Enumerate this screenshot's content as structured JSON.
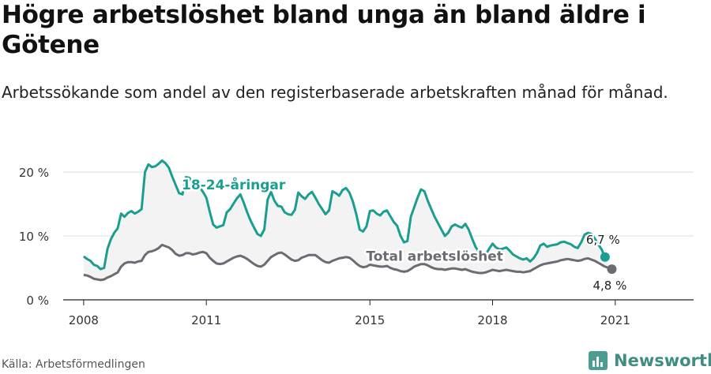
{
  "title": "Högre arbetslöshet bland unga än bland äldre i Götene",
  "subtitle": "Arbetssökande som andel av den registerbaserade arbetskraften månad för månad.",
  "source": "Källa: Arbetsförmedlingen",
  "brand": {
    "name": "Newsworthy",
    "icon": "bar-chart-logo-icon",
    "color": "#4a9d8f"
  },
  "chart_data": {
    "type": "line",
    "x_start": "2008-01",
    "x_end": "2022-02",
    "xlim": [
      "2007-07",
      "2022-12"
    ],
    "ylim": [
      0,
      21
    ],
    "y_ticks": [
      {
        "value": 0,
        "label": "0 %"
      },
      {
        "value": 10,
        "label": "10 %"
      },
      {
        "value": 20,
        "label": "20 %"
      }
    ],
    "x_ticks": [
      {
        "value": "2008-01",
        "label": "2008"
      },
      {
        "value": "2011-01",
        "label": "2011"
      },
      {
        "value": "2015-01",
        "label": "2015"
      },
      {
        "value": "2018-01",
        "label": "2018"
      },
      {
        "value": "2021-01",
        "label": "2021"
      }
    ],
    "grid": true,
    "band_between_series": true,
    "series": [
      {
        "name": "18-24-åringar",
        "color": "#1a9e8f",
        "label_date": "2011-09",
        "end_label": "6,7 %",
        "values": [
          6.8,
          6.4,
          6.1,
          5.5,
          5.3,
          4.8,
          5.0,
          8.0,
          9.5,
          10.5,
          11.2,
          13.5,
          13.0,
          13.6,
          13.9,
          13.5,
          13.8,
          14.2,
          20.0,
          21.2,
          20.8,
          20.9,
          21.3,
          21.8,
          21.4,
          20.7,
          19.3,
          18.0,
          16.7,
          16.5,
          19.2,
          19.1,
          18.3,
          17.5,
          17.7,
          16.9,
          16.0,
          13.8,
          11.8,
          11.3,
          11.5,
          11.7,
          13.7,
          14.2,
          15.1,
          15.9,
          16.5,
          15.2,
          13.7,
          12.4,
          11.3,
          10.3,
          10.0,
          11.0,
          15.7,
          16.9,
          15.5,
          14.7,
          14.6,
          13.7,
          13.4,
          13.3,
          14.1,
          16.8,
          16.2,
          15.8,
          16.5,
          16.9,
          16.0,
          15.0,
          14.2,
          13.4,
          14.0,
          17.0,
          16.7,
          16.3,
          17.2,
          17.5,
          16.8,
          15.4,
          13.4,
          11.0,
          10.7,
          11.5,
          13.9,
          14.0,
          13.5,
          13.2,
          13.8,
          14.0,
          13.1,
          12.2,
          11.6,
          10.0,
          9.0,
          9.2,
          13.0,
          14.5,
          16.0,
          17.3,
          17.0,
          15.5,
          14.2,
          13.0,
          12.0,
          11.0,
          10.0,
          10.5,
          11.5,
          11.8,
          11.5,
          11.3,
          11.9,
          11.0,
          9.6,
          8.3,
          7.5,
          7.5,
          7.1,
          8.0,
          8.8,
          8.2,
          7.9,
          8.0,
          8.2,
          7.7,
          7.1,
          6.8,
          6.5,
          6.3,
          6.5,
          6.0,
          6.5,
          7.3,
          8.5,
          8.8,
          8.3,
          8.5,
          8.6,
          8.7,
          9.0,
          9.1,
          8.9,
          8.7,
          8.3,
          8.1,
          9.0,
          10.2,
          10.5,
          10.3,
          9.6,
          8.7,
          7.9,
          6.7
        ]
      },
      {
        "name": "Total arbetslöshet",
        "color": "#6b6b73",
        "label_date": "2016-08",
        "end_label": "4,8 %",
        "values": [
          3.9,
          3.8,
          3.6,
          3.3,
          3.2,
          3.1,
          3.2,
          3.5,
          3.7,
          4.0,
          4.3,
          5.2,
          5.7,
          5.9,
          5.9,
          5.8,
          6.0,
          6.1,
          7.0,
          7.5,
          7.6,
          7.8,
          8.1,
          8.6,
          8.4,
          8.2,
          7.8,
          7.2,
          6.9,
          7.0,
          7.3,
          7.3,
          7.1,
          7.2,
          7.4,
          7.5,
          7.3,
          6.6,
          6.1,
          5.7,
          5.6,
          5.7,
          6.0,
          6.3,
          6.6,
          6.8,
          6.9,
          6.7,
          6.4,
          6.0,
          5.6,
          5.3,
          5.2,
          5.5,
          6.1,
          6.7,
          7.0,
          7.3,
          7.4,
          7.1,
          6.7,
          6.3,
          6.1,
          6.2,
          6.6,
          6.8,
          7.0,
          7.0,
          7.0,
          6.6,
          6.2,
          5.9,
          5.8,
          6.1,
          6.3,
          6.5,
          6.6,
          6.7,
          6.6,
          6.2,
          5.7,
          5.3,
          5.1,
          5.2,
          5.5,
          5.4,
          5.3,
          5.2,
          5.2,
          5.3,
          5.0,
          4.8,
          4.7,
          4.5,
          4.4,
          4.5,
          4.8,
          5.2,
          5.4,
          5.6,
          5.6,
          5.4,
          5.1,
          4.9,
          4.8,
          4.8,
          4.7,
          4.8,
          4.9,
          4.9,
          4.8,
          4.7,
          4.8,
          4.6,
          4.4,
          4.3,
          4.2,
          4.2,
          4.3,
          4.5,
          4.7,
          4.6,
          4.5,
          4.6,
          4.7,
          4.6,
          4.5,
          4.4,
          4.4,
          4.3,
          4.4,
          4.5,
          4.8,
          5.1,
          5.4,
          5.6,
          5.7,
          5.8,
          5.9,
          6.0,
          6.2,
          6.3,
          6.4,
          6.3,
          6.2,
          6.1,
          6.2,
          6.4,
          6.5,
          6.3,
          6.1,
          5.8,
          5.5,
          5.2,
          5.0,
          4.8
        ]
      }
    ]
  }
}
